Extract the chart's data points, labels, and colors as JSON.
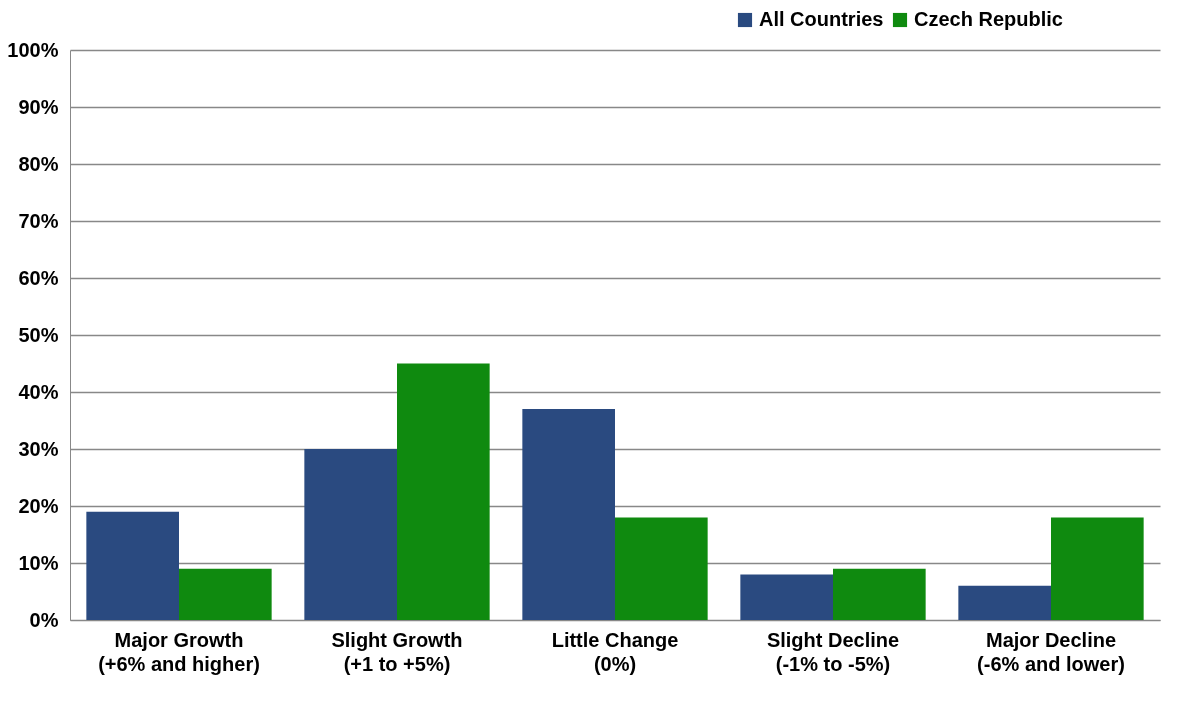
{
  "chart_data": {
    "type": "bar",
    "categories": [
      "Major Growth\n(+6% and higher)",
      "Slight Growth\n(+1 to +5%)",
      "Little Change\n(0%)",
      "Slight Decline\n(-1% to -5%)",
      "Major Decline\n(-6% and lower)"
    ],
    "series": [
      {
        "name": "All Countries",
        "color": "#2a4a80",
        "values": [
          19,
          30,
          37,
          8,
          6
        ]
      },
      {
        "name": "Czech Republic",
        "color": "#0f8a0f",
        "values": [
          9,
          45,
          18,
          9,
          18
        ]
      }
    ],
    "ylim": [
      0,
      100
    ],
    "yticks": [
      {
        "value": 0,
        "label": "0%"
      },
      {
        "value": 10,
        "label": "10%"
      },
      {
        "value": 20,
        "label": "20%"
      },
      {
        "value": 30,
        "label": "30%"
      },
      {
        "value": 40,
        "label": "40%"
      },
      {
        "value": 50,
        "label": "50%"
      },
      {
        "value": 60,
        "label": "60%"
      },
      {
        "value": 70,
        "label": "70%"
      },
      {
        "value": 80,
        "label": "80%"
      },
      {
        "value": 90,
        "label": "90%"
      },
      {
        "value": 100,
        "label": "100%"
      }
    ],
    "grid": "y",
    "legend": "top right"
  }
}
